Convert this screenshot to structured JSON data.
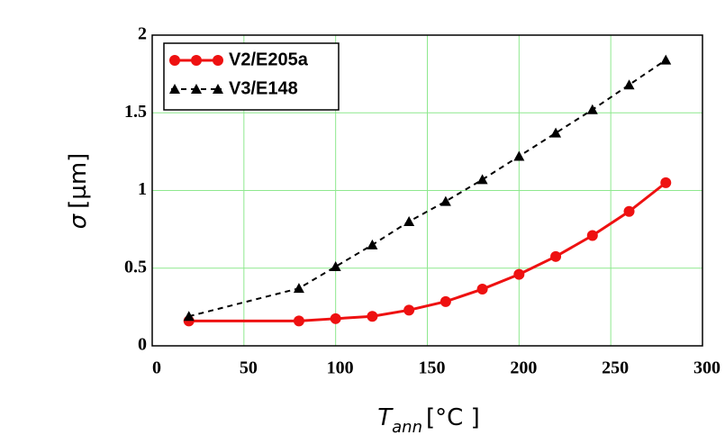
{
  "chart_data": {
    "type": "line",
    "x_label": {
      "symbol": "T",
      "subscript": "ann",
      "unit": "[°C ]"
    },
    "y_label": {
      "symbol": "σ",
      "unit": "[µm]"
    },
    "xlim": [
      0,
      300
    ],
    "xticks": [
      0,
      50,
      100,
      150,
      200,
      250,
      300
    ],
    "ylim": [
      0,
      2
    ],
    "yticks": [
      0,
      0.5,
      1,
      1.5,
      2
    ],
    "grid": true,
    "legend": "upper left",
    "series": [
      {
        "name": "V2/E205a",
        "color": "#ee1111",
        "marker": "circle",
        "dashed": false,
        "x": [
          20,
          80,
          100,
          120,
          140,
          160,
          180,
          200,
          220,
          240,
          260,
          280
        ],
        "values": [
          0.16,
          0.16,
          0.175,
          0.19,
          0.23,
          0.285,
          0.365,
          0.46,
          0.575,
          0.71,
          0.865,
          1.05
        ]
      },
      {
        "name": "V3/E148",
        "color": "#000000",
        "marker": "triangle",
        "dashed": true,
        "x": [
          20,
          80,
          100,
          120,
          140,
          160,
          180,
          200,
          220,
          240,
          260,
          280
        ],
        "values": [
          0.19,
          0.37,
          0.51,
          0.65,
          0.8,
          0.93,
          1.07,
          1.22,
          1.37,
          1.52,
          1.68,
          1.84
        ]
      }
    ]
  }
}
